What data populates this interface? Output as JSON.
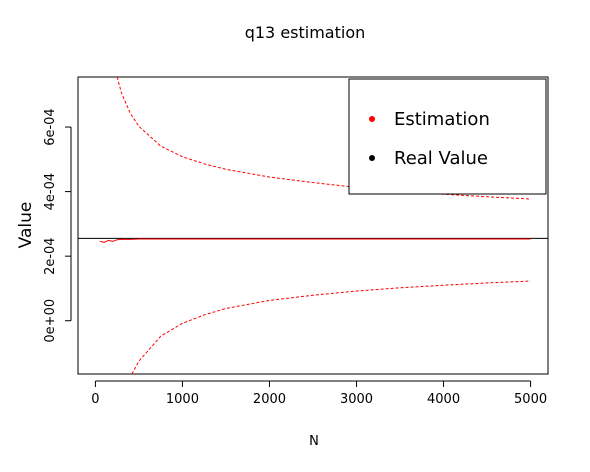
{
  "chart_data": {
    "type": "line",
    "title": "q13 estimation",
    "xlabel": "N",
    "ylabel": "Value",
    "xlim": [
      -200,
      5200
    ],
    "ylim": [
      -0.000165,
      0.000755
    ],
    "x_ticks": [
      0,
      1000,
      2000,
      3000,
      4000,
      5000
    ],
    "x_tick_labels": [
      "0",
      "1000",
      "2000",
      "3000",
      "4000",
      "5000"
    ],
    "y_ticks": [
      0,
      0.0002,
      0.0004,
      0.0006
    ],
    "y_tick_labels": [
      "0e+00",
      "2e-04",
      "4e-04",
      "6e-04"
    ],
    "real_value": 0.000255,
    "series": [
      {
        "name": "Estimation",
        "role": "estimate",
        "color": "#ff0000",
        "x": [
          50,
          100,
          150,
          200,
          250,
          300,
          400,
          500,
          750,
          1000,
          1500,
          2000,
          2500,
          3000,
          3500,
          4000,
          4500,
          5000
        ],
        "values": [
          0.000246,
          0.000243,
          0.000249,
          0.000246,
          0.000251,
          0.000252,
          0.000252,
          0.000253,
          0.000253,
          0.000253,
          0.000253,
          0.000253,
          0.000253,
          0.000253,
          0.000253,
          0.000253,
          0.000253,
          0.000253
        ]
      },
      {
        "role": "upper-bound",
        "color": "#ff0000",
        "dashed": true,
        "x": [
          250,
          300,
          400,
          500,
          750,
          1000,
          1250,
          1500,
          2000,
          2500,
          3000,
          3500,
          4000,
          4500,
          5000
        ],
        "values": [
          0.000755,
          0.000705,
          0.000643,
          0.000602,
          0.000541,
          0.000508,
          0.000486,
          0.000469,
          0.000445,
          0.000428,
          0.000413,
          0.000402,
          0.000392,
          0.000384,
          0.000377
        ]
      },
      {
        "role": "lower-bound",
        "color": "#ff0000",
        "dashed": true,
        "x": [
          420,
          500,
          750,
          1000,
          1250,
          1500,
          2000,
          2500,
          3000,
          3500,
          4000,
          4500,
          5000
        ],
        "values": [
          -0.000165,
          -0.000125,
          -4.8e-05,
          -8e-06,
          1.8e-05,
          3.8e-05,
          6.3e-05,
          7.9e-05,
          9.2e-05,
          0.000102,
          0.00011,
          0.000117,
          0.000123
        ]
      }
    ],
    "legend": {
      "position": "top-right",
      "entries": [
        {
          "label": "Estimation",
          "color": "#ff0000"
        },
        {
          "label": "Real Value",
          "color": "#000000"
        }
      ]
    },
    "grid": false
  }
}
